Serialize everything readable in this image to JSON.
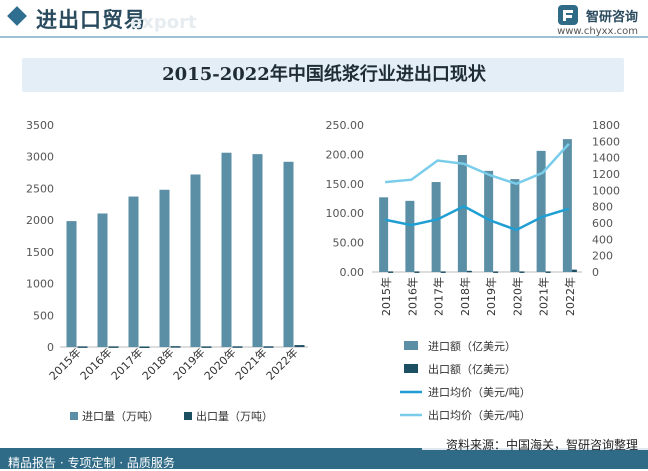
{
  "header": {
    "title": "进出口贸易",
    "watermark": "export"
  },
  "brand": {
    "name": "智研咨询",
    "url": "www.chyxx.com"
  },
  "footer": {
    "left": "精品报告 · 专项定制 · 品质服务",
    "source": "资料来源：中国海关，智研咨询整理"
  },
  "colors": {
    "import": "#5b8fa6",
    "export": "#1d4f63",
    "import_price": "#1f9ed3",
    "export_price": "#79cdea"
  },
  "chart_data": [
    {
      "type": "bar",
      "title": "2015-2022年中国纸浆行业进出口现状",
      "categories": [
        "2015年",
        "2016年",
        "2017年",
        "2018年",
        "2019年",
        "2020年",
        "2021年",
        "2022年"
      ],
      "ylim": [
        0,
        3500
      ],
      "yticks": [
        0,
        500,
        1000,
        1500,
        2000,
        2500,
        3000,
        3500
      ],
      "series": [
        {
          "name": "进口量（万吨）",
          "values": [
            1985,
            2105,
            2372,
            2479,
            2720,
            3063,
            3041,
            2920
          ]
        },
        {
          "name": "出口量（万吨）",
          "values": [
            10,
            10,
            8,
            13,
            10,
            11,
            11,
            30
          ]
        }
      ]
    },
    {
      "type": "bar+line",
      "categories": [
        "2015年",
        "2016年",
        "2017年",
        "2018年",
        "2019年",
        "2020年",
        "2021年",
        "2022年"
      ],
      "ylim_left": [
        0,
        250
      ],
      "yticks_left": [
        "0.00",
        "50.00",
        "100.00",
        "150.00",
        "200.00",
        "250.00"
      ],
      "ylim_right": [
        0,
        1800
      ],
      "yticks_right": [
        "0",
        "200",
        "400",
        "600",
        "800",
        "1000",
        "1200",
        "1400",
        "1600",
        "1800"
      ],
      "series": [
        {
          "name": "进口额（亿美元）",
          "kind": "bar",
          "axis": "left",
          "values": [
            127,
            121,
            153,
            199,
            172,
            158,
            206,
            226
          ]
        },
        {
          "name": "出口额（亿美元）",
          "kind": "bar",
          "axis": "left",
          "values": [
            1,
            1,
            1,
            2,
            1,
            1,
            1,
            4
          ]
        },
        {
          "name": "进口均价（美元/吨）",
          "kind": "line",
          "axis": "right",
          "values": [
            640,
            575,
            645,
            805,
            632,
            515,
            678,
            775
          ]
        },
        {
          "name": "出口均价（美元/吨）",
          "kind": "line",
          "axis": "right",
          "values": [
            1100,
            1130,
            1365,
            1325,
            1185,
            1080,
            1215,
            1570
          ]
        }
      ]
    }
  ]
}
